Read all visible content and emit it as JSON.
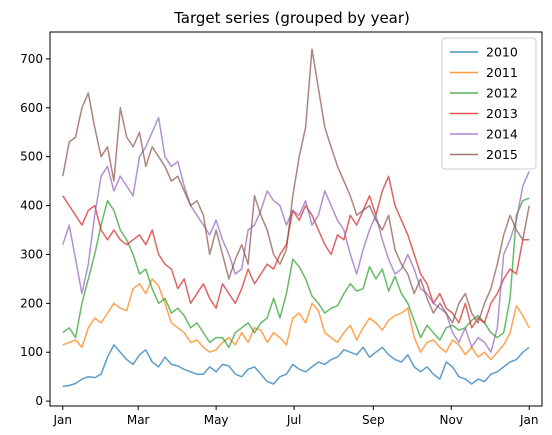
{
  "chart_data": {
    "type": "line",
    "title": "Target series (grouped by year)",
    "xlabel": "",
    "ylabel": "",
    "xlim": [
      -10,
      375
    ],
    "ylim": [
      -10,
      755
    ],
    "x_ticks": [
      {
        "label": "Jan",
        "day": 0
      },
      {
        "label": "Mar",
        "day": 59
      },
      {
        "label": "May",
        "day": 120
      },
      {
        "label": "Jul",
        "day": 181
      },
      {
        "label": "Sep",
        "day": 243
      },
      {
        "label": "Nov",
        "day": 304
      },
      {
        "label": "Jan",
        "day": 365
      }
    ],
    "y_ticks": [
      0,
      100,
      200,
      300,
      400,
      500,
      600,
      700
    ],
    "grid": false,
    "legend": {
      "position": "top-right"
    },
    "series": [
      {
        "name": "2010",
        "color": "#1f77b4",
        "x": [
          0,
          5,
          10,
          15,
          20,
          25,
          30,
          35,
          40,
          45,
          50,
          55,
          60,
          65,
          70,
          75,
          80,
          85,
          90,
          95,
          100,
          105,
          110,
          115,
          120,
          125,
          130,
          135,
          140,
          145,
          150,
          155,
          160,
          165,
          170,
          175,
          180,
          185,
          190,
          195,
          200,
          205,
          210,
          215,
          220,
          225,
          230,
          235,
          240,
          245,
          250,
          255,
          260,
          265,
          270,
          275,
          280,
          285,
          290,
          295,
          300,
          305,
          310,
          315,
          320,
          325,
          330,
          335,
          340,
          345,
          350,
          355,
          360,
          365
        ],
        "y": [
          30,
          32,
          36,
          45,
          50,
          48,
          55,
          90,
          115,
          100,
          85,
          75,
          95,
          105,
          80,
          70,
          90,
          75,
          72,
          65,
          60,
          55,
          55,
          70,
          60,
          75,
          72,
          55,
          50,
          65,
          70,
          55,
          40,
          35,
          50,
          55,
          75,
          65,
          60,
          70,
          80,
          75,
          85,
          90,
          105,
          100,
          95,
          110,
          90,
          100,
          110,
          95,
          85,
          80,
          95,
          70,
          60,
          70,
          55,
          45,
          80,
          70,
          50,
          45,
          35,
          45,
          40,
          55,
          60,
          70,
          80,
          85,
          100,
          110
        ]
      },
      {
        "name": "2011",
        "color": "#ff7f0e",
        "x": [
          0,
          5,
          10,
          15,
          20,
          25,
          30,
          35,
          40,
          45,
          50,
          55,
          60,
          65,
          70,
          75,
          80,
          85,
          90,
          95,
          100,
          105,
          110,
          115,
          120,
          125,
          130,
          135,
          140,
          145,
          150,
          155,
          160,
          165,
          170,
          175,
          180,
          185,
          190,
          195,
          200,
          205,
          210,
          215,
          220,
          225,
          230,
          235,
          240,
          245,
          250,
          255,
          260,
          265,
          270,
          275,
          280,
          285,
          290,
          295,
          300,
          305,
          310,
          315,
          320,
          325,
          330,
          335,
          340,
          345,
          350,
          355,
          360,
          365
        ],
        "y": [
          115,
          120,
          125,
          110,
          150,
          170,
          160,
          180,
          200,
          190,
          185,
          230,
          240,
          220,
          250,
          235,
          200,
          160,
          150,
          140,
          120,
          125,
          110,
          100,
          105,
          120,
          130,
          115,
          140,
          120,
          150,
          145,
          120,
          140,
          130,
          115,
          170,
          180,
          160,
          200,
          185,
          140,
          130,
          120,
          140,
          155,
          125,
          150,
          170,
          160,
          145,
          165,
          175,
          180,
          190,
          130,
          100,
          120,
          125,
          110,
          100,
          125,
          115,
          95,
          110,
          90,
          100,
          85,
          100,
          115,
          140,
          195,
          175,
          150
        ]
      },
      {
        "name": "2012",
        "color": "#2ca02c",
        "x": [
          0,
          5,
          10,
          15,
          20,
          25,
          30,
          35,
          40,
          45,
          50,
          55,
          60,
          65,
          70,
          75,
          80,
          85,
          90,
          95,
          100,
          105,
          110,
          115,
          120,
          125,
          130,
          135,
          140,
          145,
          150,
          155,
          160,
          165,
          170,
          175,
          180,
          185,
          190,
          195,
          200,
          205,
          210,
          215,
          220,
          225,
          230,
          235,
          240,
          245,
          250,
          255,
          260,
          265,
          270,
          275,
          280,
          285,
          290,
          295,
          300,
          305,
          310,
          315,
          320,
          325,
          330,
          335,
          340,
          345,
          350,
          355,
          360,
          365
        ],
        "y": [
          140,
          150,
          130,
          200,
          250,
          300,
          360,
          410,
          390,
          350,
          330,
          300,
          260,
          270,
          230,
          200,
          210,
          180,
          190,
          175,
          150,
          160,
          140,
          120,
          130,
          130,
          110,
          140,
          150,
          160,
          140,
          160,
          170,
          210,
          170,
          220,
          290,
          275,
          250,
          215,
          200,
          180,
          190,
          195,
          220,
          240,
          225,
          230,
          275,
          250,
          270,
          225,
          255,
          220,
          200,
          165,
          130,
          155,
          140,
          125,
          150,
          155,
          145,
          150,
          165,
          175,
          160,
          140,
          130,
          140,
          210,
          380,
          410,
          415
        ]
      },
      {
        "name": "2013",
        "color": "#d62728",
        "x": [
          0,
          5,
          10,
          15,
          20,
          25,
          30,
          35,
          40,
          45,
          50,
          55,
          60,
          65,
          70,
          75,
          80,
          85,
          90,
          95,
          100,
          105,
          110,
          115,
          120,
          125,
          130,
          135,
          140,
          145,
          150,
          155,
          160,
          165,
          170,
          175,
          180,
          185,
          190,
          195,
          200,
          205,
          210,
          215,
          220,
          225,
          230,
          235,
          240,
          245,
          250,
          255,
          260,
          265,
          270,
          275,
          280,
          285,
          290,
          295,
          300,
          305,
          310,
          315,
          320,
          325,
          330,
          335,
          340,
          345,
          350,
          355,
          360,
          365
        ],
        "y": [
          420,
          400,
          380,
          360,
          390,
          400,
          350,
          330,
          350,
          330,
          320,
          330,
          340,
          320,
          350,
          300,
          280,
          270,
          230,
          250,
          200,
          220,
          240,
          210,
          190,
          240,
          220,
          200,
          230,
          270,
          240,
          260,
          280,
          270,
          300,
          320,
          390,
          370,
          400,
          380,
          350,
          320,
          300,
          340,
          330,
          380,
          360,
          390,
          420,
          380,
          430,
          460,
          400,
          370,
          340,
          300,
          260,
          240,
          200,
          220,
          190,
          180,
          160,
          200,
          150,
          170,
          160,
          200,
          220,
          250,
          270,
          260,
          330,
          330
        ]
      },
      {
        "name": "2014",
        "color": "#9467bd",
        "x": [
          0,
          5,
          10,
          15,
          20,
          25,
          30,
          35,
          40,
          45,
          50,
          55,
          60,
          65,
          70,
          75,
          80,
          85,
          90,
          95,
          100,
          105,
          110,
          115,
          120,
          125,
          130,
          135,
          140,
          145,
          150,
          155,
          160,
          165,
          170,
          175,
          180,
          185,
          190,
          195,
          200,
          205,
          210,
          215,
          220,
          225,
          230,
          235,
          240,
          245,
          250,
          255,
          260,
          265,
          270,
          275,
          280,
          285,
          290,
          295,
          300,
          305,
          310,
          315,
          320,
          325,
          330,
          335,
          340,
          345,
          350,
          355,
          360,
          365
        ],
        "y": [
          320,
          360,
          290,
          220,
          280,
          380,
          460,
          480,
          430,
          460,
          440,
          420,
          500,
          520,
          550,
          580,
          500,
          480,
          490,
          440,
          400,
          380,
          360,
          340,
          370,
          330,
          300,
          260,
          270,
          350,
          360,
          390,
          430,
          410,
          400,
          360,
          390,
          380,
          410,
          360,
          380,
          430,
          400,
          370,
          350,
          300,
          260,
          310,
          350,
          380,
          330,
          290,
          260,
          270,
          300,
          270,
          230,
          220,
          200,
          190,
          180,
          140,
          120,
          150,
          110,
          130,
          120,
          100,
          150,
          300,
          330,
          370,
          440,
          470
        ]
      },
      {
        "name": "2015",
        "color": "#8c564b",
        "x": [
          0,
          5,
          10,
          15,
          20,
          25,
          30,
          35,
          40,
          45,
          50,
          55,
          60,
          65,
          70,
          75,
          80,
          85,
          90,
          95,
          100,
          105,
          110,
          115,
          120,
          125,
          130,
          135,
          140,
          145,
          150,
          155,
          160,
          165,
          170,
          175,
          180,
          185,
          190,
          195,
          200,
          205,
          210,
          215,
          220,
          225,
          230,
          235,
          240,
          245,
          250,
          255,
          260,
          265,
          270,
          275,
          280,
          285,
          290,
          295,
          300,
          305,
          310,
          315,
          320,
          325,
          330,
          335,
          340,
          345,
          350,
          355,
          360,
          365
        ],
        "y": [
          460,
          530,
          540,
          600,
          630,
          560,
          500,
          520,
          450,
          600,
          540,
          520,
          550,
          480,
          520,
          500,
          480,
          450,
          460,
          430,
          400,
          410,
          380,
          300,
          350,
          300,
          250,
          290,
          320,
          280,
          420,
          380,
          350,
          300,
          280,
          310,
          420,
          500,
          560,
          720,
          640,
          560,
          520,
          480,
          450,
          420,
          380,
          390,
          400,
          370,
          350,
          380,
          310,
          280,
          260,
          220,
          250,
          210,
          180,
          200,
          180,
          160,
          200,
          220,
          180,
          160,
          200,
          230,
          280,
          340,
          380,
          350,
          330,
          400
        ]
      }
    ]
  }
}
